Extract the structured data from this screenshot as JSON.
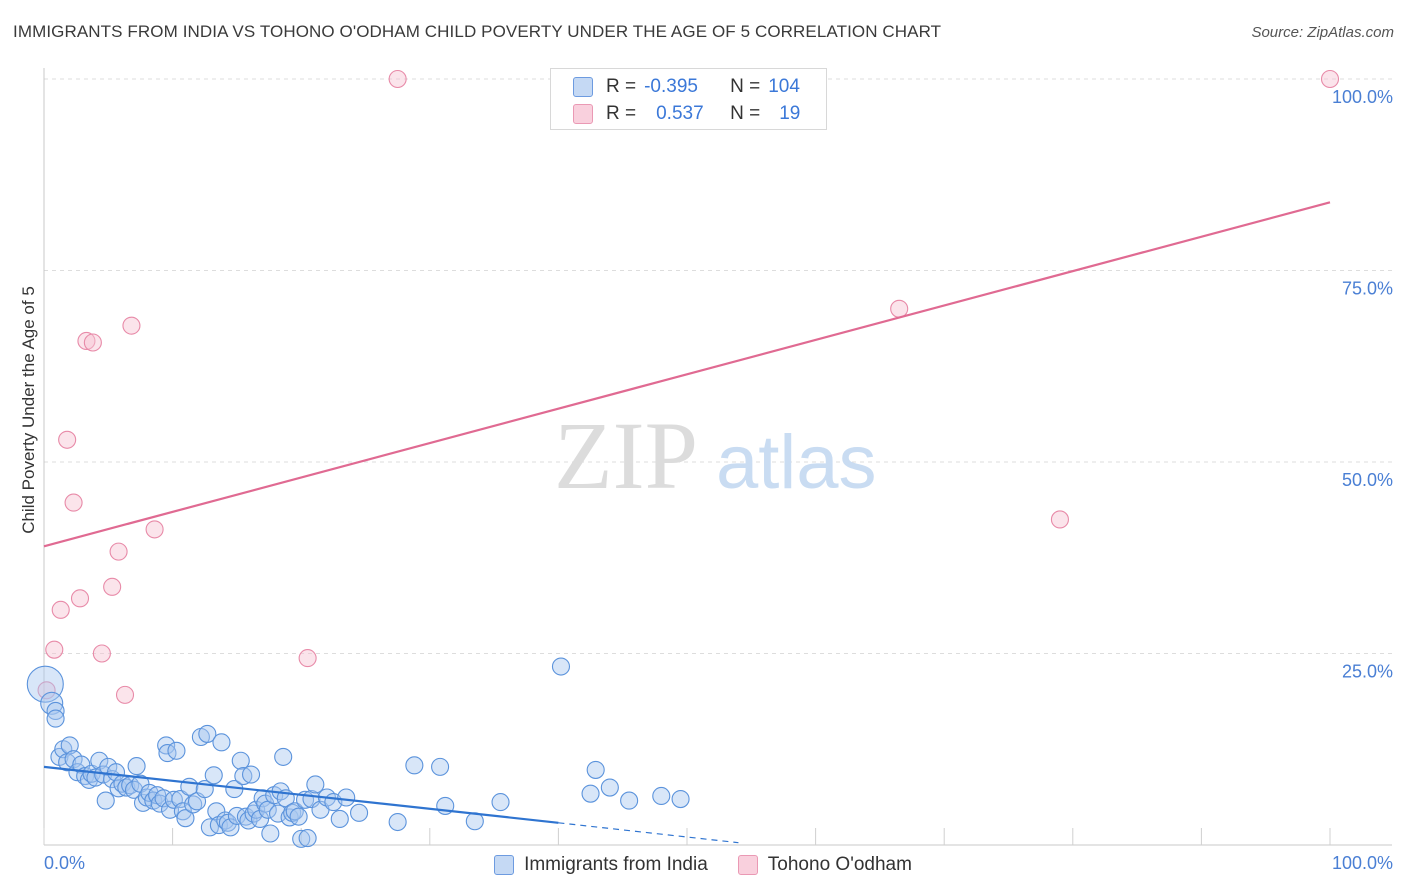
{
  "header": {
    "title": "IMMIGRANTS FROM INDIA VS TOHONO O'ODHAM CHILD POVERTY UNDER THE AGE OF 5 CORRELATION CHART",
    "source": "Source: ZipAtlas.com"
  },
  "watermark": {
    "zip": "ZIP",
    "atlas": "atlas"
  },
  "legend": {
    "rows": [
      {
        "r_label": "R =",
        "r_value": "-0.395",
        "n_label": "N =",
        "n_value": "104"
      },
      {
        "r_label": "R =",
        "r_value": "0.537",
        "n_label": "N =",
        "n_value": "19"
      }
    ]
  },
  "colors": {
    "blue_fill": "#a9c8ef",
    "blue_stroke": "#5b93dc",
    "blue_line": "#2f74d0",
    "pink_fill": "#f7c3d3",
    "pink_stroke": "#e88aa8",
    "pink_line": "#e06a92",
    "axis_text": "#4a7fd4",
    "grid": "#dddddd"
  },
  "chart_data": {
    "type": "scatter",
    "title": "IMMIGRANTS FROM INDIA VS TOHONO O'ODHAM CHILD POVERTY UNDER THE AGE OF 5 CORRELATION CHART",
    "xlabel": "",
    "ylabel": "Child Poverty Under the Age of 5",
    "xlim": [
      0,
      100
    ],
    "ylim": [
      0,
      100
    ],
    "x_ticks": [
      "0.0%",
      "100.0%"
    ],
    "y_ticks": [
      "25.0%",
      "50.0%",
      "75.0%",
      "100.0%"
    ],
    "y_tick_values": [
      25,
      50,
      75,
      100
    ],
    "grid": true,
    "legend_position": "top-center",
    "series": [
      {
        "name": "Immigrants from India",
        "r": -0.395,
        "n": 104,
        "trend": {
          "x0": 0,
          "y0": 10.2,
          "x1": 40,
          "y1": 2.9,
          "dash_x1": 54,
          "dash_y1": 0.3
        },
        "points": [
          [
            0.1,
            21,
            3
          ],
          [
            0.6,
            18.5,
            2
          ],
          [
            0.9,
            17.5,
            1
          ],
          [
            0.9,
            16.5,
            1
          ],
          [
            1.2,
            11.5,
            1
          ],
          [
            1.5,
            12.5,
            1
          ],
          [
            1.8,
            10.8,
            1
          ],
          [
            2.0,
            13.0,
            1
          ],
          [
            2.3,
            11.2,
            1
          ],
          [
            2.6,
            9.5,
            1
          ],
          [
            2.9,
            10.5,
            1
          ],
          [
            3.2,
            9.0,
            1
          ],
          [
            3.5,
            8.5,
            1
          ],
          [
            3.7,
            9.3,
            1
          ],
          [
            4.0,
            8.8,
            1
          ],
          [
            4.3,
            11.0,
            1
          ],
          [
            4.6,
            9.2,
            1
          ],
          [
            4.8,
            5.8,
            1
          ],
          [
            5.0,
            10.2,
            1
          ],
          [
            5.3,
            8.6,
            1
          ],
          [
            5.6,
            9.5,
            1
          ],
          [
            5.8,
            7.4,
            1
          ],
          [
            6.1,
            8.0,
            1
          ],
          [
            6.4,
            7.5,
            1
          ],
          [
            6.7,
            7.8,
            1
          ],
          [
            7.0,
            7.2,
            1
          ],
          [
            7.2,
            10.3,
            1
          ],
          [
            7.5,
            8.0,
            1
          ],
          [
            7.7,
            5.5,
            1
          ],
          [
            8.0,
            6.2,
            1
          ],
          [
            8.2,
            6.8,
            1
          ],
          [
            8.5,
            5.8,
            1
          ],
          [
            8.8,
            6.5,
            1
          ],
          [
            9.0,
            5.4,
            1
          ],
          [
            9.3,
            6.1,
            1
          ],
          [
            9.5,
            13.0,
            1
          ],
          [
            9.6,
            12.0,
            1
          ],
          [
            9.8,
            4.6,
            1
          ],
          [
            10.1,
            5.9,
            1
          ],
          [
            10.3,
            12.3,
            1
          ],
          [
            10.6,
            6.0,
            1
          ],
          [
            10.8,
            4.4,
            1
          ],
          [
            11.0,
            3.5,
            1
          ],
          [
            11.3,
            7.6,
            1
          ],
          [
            11.6,
            5.3,
            1
          ],
          [
            11.9,
            5.7,
            1
          ],
          [
            12.2,
            14.1,
            1
          ],
          [
            12.5,
            7.3,
            1
          ],
          [
            12.7,
            14.5,
            1
          ],
          [
            12.9,
            2.3,
            1
          ],
          [
            13.2,
            9.1,
            1
          ],
          [
            13.4,
            4.4,
            1
          ],
          [
            13.6,
            2.6,
            1
          ],
          [
            13.8,
            13.4,
            1
          ],
          [
            14.1,
            3.2,
            1
          ],
          [
            14.3,
            2.9,
            1
          ],
          [
            14.5,
            2.3,
            1
          ],
          [
            14.8,
            7.3,
            1
          ],
          [
            15.0,
            3.8,
            1
          ],
          [
            15.3,
            11.0,
            1
          ],
          [
            15.5,
            9.0,
            1
          ],
          [
            15.7,
            3.7,
            1
          ],
          [
            15.9,
            3.2,
            1
          ],
          [
            16.1,
            9.2,
            1
          ],
          [
            16.3,
            4.1,
            1
          ],
          [
            16.5,
            4.6,
            1
          ],
          [
            16.8,
            3.4,
            1
          ],
          [
            17.0,
            6.1,
            1
          ],
          [
            17.2,
            5.4,
            1
          ],
          [
            17.4,
            4.6,
            1
          ],
          [
            17.6,
            1.5,
            1
          ],
          [
            17.9,
            6.5,
            1
          ],
          [
            18.2,
            4.1,
            1
          ],
          [
            18.4,
            7.0,
            1
          ],
          [
            18.6,
            11.5,
            1
          ],
          [
            18.8,
            6.1,
            1
          ],
          [
            19.1,
            3.6,
            1
          ],
          [
            19.3,
            4.2,
            1
          ],
          [
            19.5,
            4.4,
            1
          ],
          [
            19.8,
            3.7,
            1
          ],
          [
            20.0,
            0.8,
            1
          ],
          [
            20.3,
            5.9,
            1
          ],
          [
            20.5,
            0.9,
            1
          ],
          [
            20.8,
            6.0,
            1
          ],
          [
            21.1,
            7.9,
            1
          ],
          [
            21.5,
            4.6,
            1
          ],
          [
            22.0,
            6.2,
            1
          ],
          [
            22.5,
            5.6,
            1
          ],
          [
            23.0,
            3.4,
            1
          ],
          [
            23.5,
            6.2,
            1
          ],
          [
            24.5,
            4.2,
            1
          ],
          [
            27.5,
            3.0,
            1
          ],
          [
            28.8,
            10.4,
            1
          ],
          [
            30.8,
            10.2,
            1
          ],
          [
            31.2,
            5.1,
            1
          ],
          [
            33.5,
            3.1,
            1
          ],
          [
            35.5,
            5.6,
            1
          ],
          [
            40.2,
            23.3,
            1
          ],
          [
            42.5,
            6.7,
            1
          ],
          [
            42.9,
            9.8,
            1
          ],
          [
            44.0,
            7.5,
            1
          ],
          [
            45.5,
            5.8,
            1
          ],
          [
            48.0,
            6.4,
            1
          ],
          [
            49.5,
            6.0,
            1
          ]
        ]
      },
      {
        "name": "Tohono O'odham",
        "r": 0.537,
        "n": 19,
        "trend": {
          "x0": 0,
          "y0": 39,
          "x1": 100,
          "y1": 83.9
        },
        "points": [
          [
            0.2,
            20.2,
            1
          ],
          [
            0.8,
            25.5,
            1
          ],
          [
            1.3,
            30.7,
            1
          ],
          [
            1.8,
            52.9,
            1
          ],
          [
            2.3,
            44.7,
            1
          ],
          [
            2.8,
            32.2,
            1
          ],
          [
            3.3,
            65.8,
            1
          ],
          [
            3.8,
            65.6,
            1
          ],
          [
            4.5,
            25.0,
            1
          ],
          [
            5.3,
            33.7,
            1
          ],
          [
            5.8,
            38.3,
            1
          ],
          [
            6.3,
            19.6,
            1
          ],
          [
            6.8,
            67.8,
            1
          ],
          [
            8.6,
            41.2,
            1
          ],
          [
            20.5,
            24.4,
            1
          ],
          [
            27.5,
            100,
            1
          ],
          [
            66.5,
            70.0,
            1
          ],
          [
            79.0,
            42.5,
            1
          ],
          [
            100,
            100,
            1
          ]
        ]
      }
    ]
  }
}
